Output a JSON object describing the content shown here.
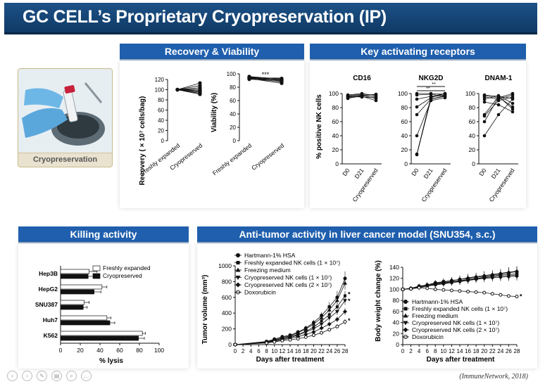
{
  "title": "GC CELL’s Proprietary Cryopreservation (IP)",
  "sections": {
    "recovery": "Recovery & Viability",
    "receptors": "Key activating receptors",
    "killing": "Killing activity",
    "antitumor": "Anti-tumor activity in liver cancer model (SNU354, s.c.)"
  },
  "photo_caption": "Cryopreservation",
  "citation": "(ImmuneNetwork, 2018)",
  "chart_data": [
    {
      "type": "line",
      "id": "recovery",
      "ylabel": "Recovery ( × 10⁷ cells/bag)",
      "categories": [
        "Freshly expanded",
        "Cryopreserved"
      ],
      "ylim": [
        0,
        120
      ],
      "yticks": [
        0,
        20,
        40,
        60,
        80,
        100,
        120
      ],
      "pairs": [
        [
          100,
          113
        ],
        [
          100,
          108
        ],
        [
          100,
          104
        ],
        [
          100,
          101
        ],
        [
          100,
          99
        ],
        [
          100,
          97
        ],
        [
          100,
          95
        ],
        [
          100,
          93
        ],
        [
          100,
          91
        ]
      ]
    },
    {
      "type": "line",
      "id": "viability",
      "ylabel": "Viability (%)",
      "categories": [
        "Freshly expanded",
        "Cryopreserved"
      ],
      "ylim": [
        0,
        100
      ],
      "yticks": [
        0,
        20,
        40,
        60,
        80,
        100
      ],
      "significance": "***",
      "pairs": [
        [
          96,
          92
        ],
        [
          95,
          91
        ],
        [
          94,
          90
        ],
        [
          94,
          88
        ],
        [
          93,
          86
        ],
        [
          92,
          89
        ],
        [
          95,
          93
        ],
        [
          93,
          91
        ]
      ]
    },
    {
      "type": "line",
      "id": "receptors",
      "ylabel": "% positive NK cells",
      "categories": [
        "D0",
        "D21",
        "Cryopreserved"
      ],
      "ylim": [
        0,
        100
      ],
      "yticks": [
        0,
        20,
        40,
        60,
        80,
        100
      ],
      "panels": [
        {
          "name": "CD16",
          "lines": [
            [
              97,
              99,
              98
            ],
            [
              96,
              98,
              95
            ],
            [
              95,
              97,
              99
            ],
            [
              94,
              96,
              90
            ],
            [
              98,
              100,
              97
            ],
            [
              93,
              97,
              93
            ],
            [
              96,
              95,
              94
            ]
          ]
        },
        {
          "name": "NKG2D",
          "significance": [
            "**",
            "**"
          ],
          "lines": [
            [
              100,
              100,
              99
            ],
            [
              92,
              96,
              100
            ],
            [
              81,
              94,
              100
            ],
            [
              70,
              92,
              96
            ],
            [
              40,
              90,
              94
            ],
            [
              14,
              95,
              98
            ],
            [
              13,
              92,
              97
            ],
            [
              98,
              99,
              96
            ]
          ]
        },
        {
          "name": "DNAM-1",
          "lines": [
            [
              98,
              96,
              93
            ],
            [
              95,
              92,
              98
            ],
            [
              92,
              97,
              86
            ],
            [
              70,
              96,
              78
            ],
            [
              68,
              90,
              95
            ],
            [
              60,
              95,
              81
            ],
            [
              40,
              70,
              92
            ],
            [
              88,
              84,
              74
            ],
            [
              97,
              94,
              100
            ]
          ]
        }
      ]
    },
    {
      "type": "bar",
      "id": "killing",
      "orientation": "horizontal",
      "xlabel": "% lysis",
      "xlim": [
        0,
        100
      ],
      "xticks": [
        0,
        20,
        40,
        60,
        80,
        100
      ],
      "categories": [
        "Hep3B",
        "HepG2",
        "SNU387",
        "Huh7",
        "K562"
      ],
      "series": [
        {
          "name": "Freshly expanded",
          "values": [
            29,
            42,
            24,
            47,
            83
          ],
          "errors": [
            8,
            5,
            5,
            4,
            3
          ],
          "color": "#ffffff"
        },
        {
          "name": "Cryopreserved",
          "values": [
            28,
            34,
            23,
            50,
            79
          ],
          "errors": [
            11,
            7,
            4,
            5,
            6
          ],
          "color": "#111111"
        }
      ]
    },
    {
      "type": "line",
      "id": "tumor-volume",
      "xlabel": "Days after treatment",
      "ylabel": "Tumor volume (mm³)",
      "x": [
        0,
        8,
        10,
        12,
        14,
        16,
        18,
        20,
        22,
        24,
        26,
        28
      ],
      "xticks": [
        0,
        2,
        4,
        6,
        8,
        10,
        12,
        14,
        16,
        18,
        20,
        22,
        24,
        26,
        28
      ],
      "ylim": [
        0,
        1000
      ],
      "yticks": [
        0,
        200,
        400,
        600,
        800,
        1000
      ],
      "stars": [
        {
          "x": 28,
          "y": 640,
          "text": "*"
        },
        {
          "x": 28,
          "y": 555,
          "text": "*"
        },
        {
          "x": 28,
          "y": 305,
          "text": "*"
        }
      ],
      "series": [
        {
          "name": "Hartmann-1% HSA",
          "marker": "circle",
          "values": [
            0,
            40,
            70,
            100,
            120,
            160,
            210,
            280,
            370,
            480,
            600,
            840
          ],
          "errors": [
            0,
            10,
            15,
            15,
            20,
            25,
            30,
            35,
            40,
            60,
            80,
            90
          ]
        },
        {
          "name": "Freshly expanded NK cells (1 × 10⁷)",
          "marker": "square",
          "values": [
            0,
            30,
            55,
            80,
            100,
            130,
            170,
            220,
            300,
            380,
            480,
            620
          ],
          "errors": [
            0,
            8,
            10,
            12,
            15,
            20,
            25,
            30,
            35,
            40,
            50,
            60
          ]
        },
        {
          "name": "Freezing medium",
          "marker": "triangle",
          "values": [
            0,
            35,
            60,
            90,
            110,
            150,
            200,
            260,
            340,
            440,
            560,
            780
          ],
          "errors": [
            0,
            10,
            12,
            14,
            18,
            22,
            28,
            34,
            40,
            50,
            70,
            80
          ]
        },
        {
          "name": "Cryopreserved NK cells (1 × 10⁷)",
          "marker": "triangle-down",
          "values": [
            0,
            28,
            50,
            70,
            90,
            120,
            160,
            200,
            260,
            340,
            420,
            560
          ],
          "errors": [
            0,
            8,
            10,
            12,
            14,
            18,
            22,
            28,
            32,
            38,
            45,
            55
          ]
        },
        {
          "name": "Cryopreserved NK cells (2 × 10⁷)",
          "marker": "diamond",
          "values": [
            0,
            25,
            45,
            60,
            80,
            100,
            130,
            160,
            210,
            260,
            320,
            420
          ],
          "errors": [
            0,
            6,
            8,
            10,
            12,
            15,
            18,
            22,
            26,
            30,
            35,
            45
          ]
        },
        {
          "name": "Doxorubicin",
          "marker": "open-circle",
          "values": [
            0,
            20,
            35,
            50,
            60,
            75,
            95,
            120,
            150,
            190,
            230,
            290
          ],
          "errors": [
            0,
            5,
            6,
            8,
            10,
            12,
            14,
            16,
            20,
            24,
            28,
            35
          ]
        }
      ]
    },
    {
      "type": "line",
      "id": "body-weight",
      "xlabel": "Days after treatment",
      "ylabel": "Body weight change (%)",
      "x": [
        0,
        2,
        4,
        6,
        8,
        10,
        12,
        14,
        16,
        18,
        20,
        22,
        24,
        26,
        28
      ],
      "xticks": [
        0,
        2,
        4,
        6,
        8,
        10,
        12,
        14,
        16,
        18,
        20,
        22,
        24,
        26,
        28
      ],
      "ylim": [
        0,
        140
      ],
      "yticks": [
        0,
        20,
        40,
        60,
        80,
        100,
        120,
        140
      ],
      "stars": [
        {
          "x": 28,
          "y": 87,
          "text": "*"
        }
      ],
      "series": [
        {
          "name": "Hartmann-1% HSA",
          "marker": "circle",
          "values": [
            100,
            102,
            106,
            108,
            112,
            114,
            116,
            118,
            120,
            122,
            124,
            126,
            128,
            130,
            132
          ],
          "errors": [
            0,
            3,
            4,
            5,
            5,
            6,
            6,
            6,
            7,
            7,
            8,
            8,
            8,
            9,
            9
          ]
        },
        {
          "name": "Freshly expanded NK cells (1 × 10⁷)",
          "marker": "square",
          "values": [
            100,
            101,
            104,
            107,
            110,
            112,
            114,
            116,
            118,
            120,
            122,
            124,
            126,
            127,
            128
          ],
          "errors": [
            0,
            3,
            4,
            5,
            5,
            6,
            6,
            6,
            7,
            7,
            7,
            8,
            8,
            8,
            9
          ]
        },
        {
          "name": "Freezing medium",
          "marker": "triangle",
          "values": [
            100,
            102,
            105,
            108,
            111,
            113,
            116,
            118,
            121,
            123,
            125,
            127,
            129,
            131,
            133
          ],
          "errors": [
            0,
            3,
            4,
            5,
            5,
            6,
            6,
            7,
            7,
            7,
            8,
            8,
            8,
            9,
            9
          ]
        },
        {
          "name": "Cryopreserved NK cells (1 × 10⁷)",
          "marker": "triangle-down",
          "values": [
            100,
            101,
            103,
            106,
            109,
            111,
            113,
            115,
            117,
            119,
            121,
            123,
            124,
            125,
            126
          ],
          "errors": [
            0,
            3,
            4,
            4,
            5,
            5,
            6,
            6,
            6,
            7,
            7,
            7,
            8,
            8,
            8
          ]
        },
        {
          "name": "Cryopreserved NK cells (2 × 10⁷)",
          "marker": "diamond",
          "values": [
            100,
            101,
            104,
            106,
            108,
            110,
            112,
            114,
            116,
            118,
            120,
            121,
            122,
            123,
            124
          ],
          "errors": [
            0,
            3,
            3,
            4,
            5,
            5,
            5,
            6,
            6,
            6,
            7,
            7,
            7,
            8,
            8
          ]
        },
        {
          "name": "Doxorubicin",
          "marker": "open-circle",
          "values": [
            100,
            101,
            103,
            102,
            100,
            99,
            98,
            97,
            96,
            95,
            94,
            92,
            90,
            88,
            87
          ],
          "errors": [
            0,
            2,
            3,
            3,
            3,
            3,
            3,
            3,
            3,
            3,
            3,
            3,
            3,
            3,
            3
          ]
        }
      ]
    }
  ]
}
